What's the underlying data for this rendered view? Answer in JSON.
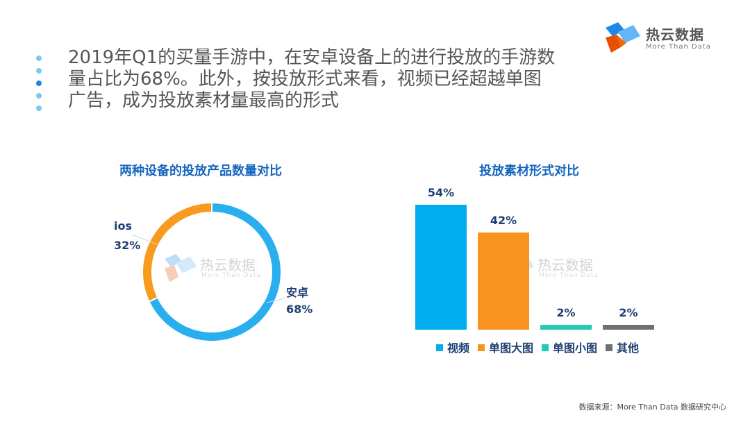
{
  "logo": {
    "name": "热云数据",
    "sub": "More Than Data"
  },
  "headline": {
    "lines": [
      "2019年Q1的买量手游中，在安卓设备上的进行投放的手游数",
      "量占比为68%。此外，按投放形式来看，视频已经超越单图",
      "广告，成为投放素材量最高的形式"
    ]
  },
  "bullets": {
    "colors": [
      "#7dc8ef",
      "#7dc8ef",
      "#1e88e5",
      "#7dc8ef",
      "#7dc8ef"
    ]
  },
  "donut": {
    "title": "两种设备的投放产品数量对比",
    "ios_name": "ios",
    "ios_pct": "32%",
    "android_name": "安卓",
    "android_pct": "68%"
  },
  "bars": {
    "title": "投放素材形式对比",
    "value_labels": [
      "54%",
      "42%",
      "2%",
      "2%"
    ],
    "legend": [
      "视频",
      "单图大图",
      "单图小图",
      "其他"
    ]
  },
  "watermark": {
    "name": "热云数据",
    "sub": "More Than Data"
  },
  "source": "数据来源：More Than Data 数据研究中心",
  "colors": {
    "android": "#29aef0",
    "ios": "#f79a1e",
    "video": "#00aef0",
    "big_image": "#f7931e",
    "small_image": "#20c9b8",
    "other": "#707070",
    "title_blue": "#1565c0",
    "label_dark": "#1d3f72"
  },
  "chart_data": [
    {
      "type": "pie",
      "title": "两种设备的投放产品数量对比",
      "categories": [
        "安卓",
        "ios"
      ],
      "values": [
        68,
        32
      ]
    },
    {
      "type": "bar",
      "title": "投放素材形式对比",
      "categories": [
        "视频",
        "单图大图",
        "单图小图",
        "其他"
      ],
      "values": [
        54,
        42,
        2,
        2
      ],
      "ylim": [
        0,
        54
      ]
    }
  ]
}
